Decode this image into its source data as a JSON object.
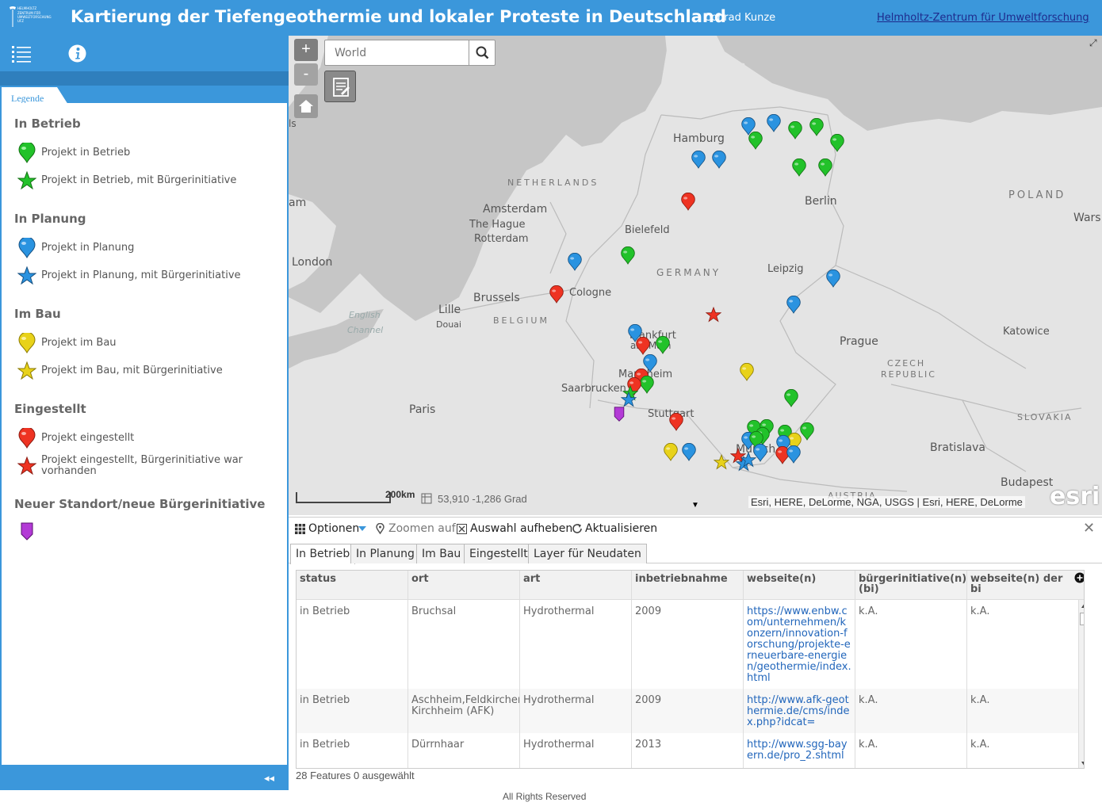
{
  "header": {
    "logo_text": "HELMHOLTZ ZENTRUM FÜR UMWELTFORSCHUNG UFZ",
    "title": "Kartierung der Tiefengeothermie und lokaler Proteste in Deutschland",
    "author": "Conrad Kunze",
    "link": "Helmholtz-Zentrum für Umweltforschung"
  },
  "side": {
    "legend_tab": "Legende",
    "collapse": "◂◂",
    "groups": [
      {
        "title": "In Betrieb",
        "items": [
          "Projekt in Betrieb",
          "Projekt in Betrieb, mit Bürgerinitiative"
        ]
      },
      {
        "title": "In Planung",
        "items": [
          "Projekt in Planung",
          "Projekt in Planung, mit Bürgerinitiative"
        ]
      },
      {
        "title": "Im Bau",
        "items": [
          "Projekt im Bau",
          "Projekt im Bau, mit Bürgerinitiative"
        ]
      },
      {
        "title": "Eingestellt",
        "items": [
          "Projekt eingestellt",
          "Projekt eingestellt, Bürgerinitiative war vorhanden"
        ]
      },
      {
        "title": "Neuer Standort/neue Bürgerinitiative",
        "items": [
          ""
        ]
      }
    ]
  },
  "map": {
    "zoom_in": "+",
    "zoom_out": "-",
    "search_placeholder": "World",
    "scale": "200km",
    "coords": "53,910  -1,286 Grad",
    "attribution": "Esri, HERE, DeLorme, NGA, USGS | Esri, HERE, DeLorme",
    "esri_logo": "esri",
    "labels": {
      "hamburg": "Hamburg",
      "netherlands": "NETHERLANDS",
      "amsterdam": "Amsterdam",
      "thehague": "The Hague",
      "rotterdam": "Rotterdam",
      "bielefeld": "Bielefeld",
      "berlin": "Berlin",
      "poland": "POLAND",
      "wars": "Wars",
      "london": "London",
      "am": "am",
      "ls": "ls",
      "germany": "GERMANY",
      "leipzig": "Leipzig",
      "english": "English",
      "channel": "Channel",
      "lille": "Lille",
      "douai": "Douai",
      "brussels": "Brussels",
      "belgium": "BELGIUM",
      "cologne": "Cologne",
      "frankfurt1": "Frankfurt",
      "frankfurt2": "am Main",
      "prague": "Prague",
      "katowice": "Katowice",
      "czech1": "CZECH",
      "czech2": "REPUBLIC",
      "mannheim": "Mannheim",
      "saarbrucken": "Saarbrucken",
      "paris": "Paris",
      "stuttgart": "Stuttgart",
      "slovakia": "SLOVAKIA",
      "munich": "Munich",
      "bratislava": "Bratislava",
      "austria": "AUSTRIA",
      "budapest": "Budapest"
    }
  },
  "table": {
    "options": "Optionen",
    "zoom_to": "Zoomen auf",
    "clear": "Auswahl aufheben",
    "refresh": "Aktualisieren",
    "tabs": [
      "In Betrieb",
      "In Planung",
      "Im Bau",
      "Eingestellt",
      "Layer für Neudaten"
    ],
    "columns": [
      "status",
      "ort",
      "art",
      "inbetriebnahme",
      "webseite(n)",
      "bürgerinitiative(n) (bi)",
      "webseite(n) der bi"
    ],
    "rows": [
      [
        "in Betrieb",
        "Bruchsal",
        "Hydrothermal",
        "2009",
        "https://www.enbw.com/unternehmen/konzern/innovation-forschung/projekte-erneuerbare-energien/geothermie/index.html",
        "k.A.",
        "k.A."
      ],
      [
        "in Betrieb",
        "Aschheim,Feldkirchen, Kirchheim (AFK)",
        "Hydrothermal",
        "2009",
        "http://www.afk-geothermie.de/cms/index.php?idcat=",
        "k.A.",
        "k.A."
      ],
      [
        "in Betrieb",
        "Dürrnhaar",
        "Hydrothermal",
        "2013",
        "http://www.sgg-bayern.de/pro_2.shtml",
        "k.A.",
        "k.A."
      ]
    ],
    "footer": "28 Features 0 ausgewählt"
  },
  "footer": {
    "rights": "All Rights Reserved"
  },
  "colors": {
    "brand": "#3b97db",
    "green": "#22c22a",
    "blue": "#2a93e0",
    "yellow": "#e8d21a",
    "red": "#ee3322",
    "purple": "#b33ad6"
  }
}
